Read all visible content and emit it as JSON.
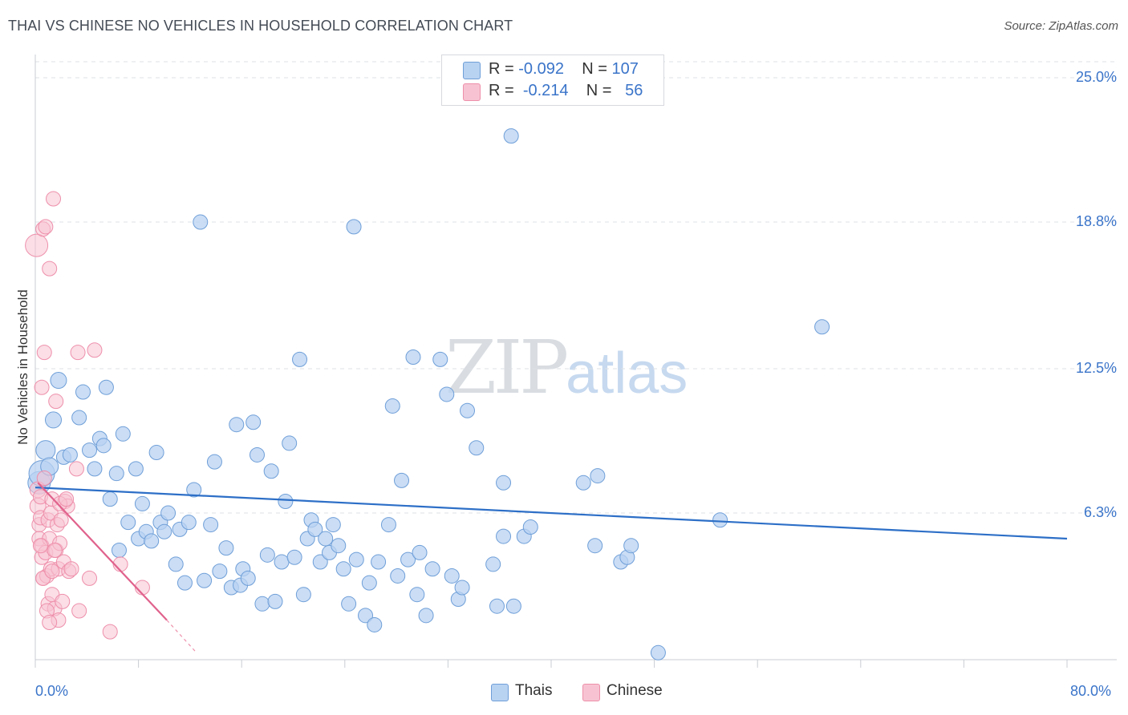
{
  "header": {
    "title": "THAI VS CHINESE NO VEHICLES IN HOUSEHOLD CORRELATION CHART",
    "source": "Source: ZipAtlas.com"
  },
  "watermark": {
    "zip": "ZIP",
    "atlas": "atlas"
  },
  "legend": {
    "thais": {
      "r_label": "R = ",
      "r_value": "-0.092",
      "n_label": "N = ",
      "n_value": "107"
    },
    "chinese": {
      "r_label": "R = ",
      "r_value": "-0.214",
      "n_label": "N = ",
      "n_value": "56"
    }
  },
  "colors": {
    "thai_fill": "#b8d2f1",
    "thai_stroke": "#6f9fd8",
    "thai_line": "#2d6fc7",
    "chinese_fill": "#f7c3d2",
    "chinese_stroke": "#ee8fab",
    "chinese_line": "#e0628c",
    "grid": "#dde1e6",
    "axis_text": "#3a74c9"
  },
  "chart_data": {
    "type": "scatter",
    "title": "THAI VS CHINESE NO VEHICLES IN HOUSEHOLD CORRELATION CHART",
    "xlabel": "",
    "ylabel": "No Vehicles in Household",
    "xlim": [
      0,
      80
    ],
    "ylim": [
      0,
      26.5
    ],
    "x_tick_labels": [
      "0.0%",
      "80.0%"
    ],
    "y_ticks": [
      6.3,
      12.5,
      18.8,
      25.0
    ],
    "y_tick_labels": [
      "6.3%",
      "12.5%",
      "18.8%",
      "25.0%"
    ],
    "legend_bottom": [
      "Thais",
      "Chinese"
    ],
    "series": [
      {
        "name": "Thais",
        "r": -0.092,
        "n": 107,
        "trend": {
          "x": [
            0,
            80
          ],
          "y": [
            7.4,
            5.2
          ]
        },
        "points": [
          [
            0.3,
            7.6,
            14
          ],
          [
            0.5,
            8.0,
            16
          ],
          [
            0.8,
            9.0,
            12
          ],
          [
            1.1,
            8.3,
            11
          ],
          [
            1.4,
            10.3,
            10
          ],
          [
            1.8,
            12.0,
            10
          ],
          [
            2.2,
            8.7,
            9
          ],
          [
            2.7,
            8.8,
            9
          ],
          [
            3.4,
            10.4,
            9
          ],
          [
            3.7,
            11.5,
            9
          ],
          [
            4.2,
            9.0,
            9
          ],
          [
            4.6,
            8.2,
            9
          ],
          [
            5.0,
            9.5,
            9
          ],
          [
            5.3,
            9.2,
            9
          ],
          [
            5.5,
            11.7,
            9
          ],
          [
            5.8,
            6.9,
            9
          ],
          [
            6.3,
            8.0,
            9
          ],
          [
            6.5,
            4.7,
            9
          ],
          [
            6.8,
            9.7,
            9
          ],
          [
            7.2,
            5.9,
            9
          ],
          [
            7.8,
            8.2,
            9
          ],
          [
            8.0,
            5.2,
            9
          ],
          [
            8.3,
            6.7,
            9
          ],
          [
            8.6,
            5.5,
            9
          ],
          [
            9.0,
            5.1,
            9
          ],
          [
            9.4,
            8.9,
            9
          ],
          [
            9.7,
            5.9,
            9
          ],
          [
            10.0,
            5.5,
            9
          ],
          [
            10.3,
            6.3,
            9
          ],
          [
            10.9,
            4.1,
            9
          ],
          [
            11.2,
            5.6,
            9
          ],
          [
            11.6,
            3.3,
            9
          ],
          [
            11.9,
            5.9,
            9
          ],
          [
            12.3,
            7.3,
            9
          ],
          [
            12.8,
            18.8,
            9
          ],
          [
            13.1,
            3.4,
            9
          ],
          [
            13.6,
            5.8,
            9
          ],
          [
            13.9,
            8.5,
            9
          ],
          [
            14.3,
            3.8,
            9
          ],
          [
            14.8,
            4.8,
            9
          ],
          [
            15.2,
            3.1,
            9
          ],
          [
            15.6,
            10.1,
            9
          ],
          [
            15.9,
            3.2,
            9
          ],
          [
            16.1,
            3.9,
            9
          ],
          [
            16.5,
            3.5,
            9
          ],
          [
            16.9,
            10.2,
            9
          ],
          [
            17.2,
            8.8,
            9
          ],
          [
            17.6,
            2.4,
            9
          ],
          [
            18.0,
            4.5,
            9
          ],
          [
            18.3,
            8.1,
            9
          ],
          [
            18.6,
            2.5,
            9
          ],
          [
            19.1,
            4.2,
            9
          ],
          [
            19.4,
            6.8,
            9
          ],
          [
            19.7,
            9.3,
            9
          ],
          [
            20.1,
            4.4,
            9
          ],
          [
            20.5,
            12.9,
            9
          ],
          [
            20.8,
            2.8,
            9
          ],
          [
            21.1,
            5.2,
            9
          ],
          [
            21.4,
            6.0,
            9
          ],
          [
            21.7,
            5.6,
            9
          ],
          [
            22.1,
            4.2,
            9
          ],
          [
            22.5,
            5.2,
            9
          ],
          [
            22.8,
            4.6,
            9
          ],
          [
            23.1,
            5.8,
            9
          ],
          [
            23.5,
            4.9,
            9
          ],
          [
            23.9,
            3.9,
            9
          ],
          [
            24.3,
            2.4,
            9
          ],
          [
            24.7,
            18.6,
            9
          ],
          [
            24.9,
            4.3,
            9
          ],
          [
            25.6,
            1.9,
            9
          ],
          [
            25.9,
            3.3,
            9
          ],
          [
            26.3,
            1.5,
            9
          ],
          [
            26.6,
            4.2,
            9
          ],
          [
            27.4,
            5.8,
            9
          ],
          [
            27.7,
            10.9,
            9
          ],
          [
            28.1,
            3.6,
            9
          ],
          [
            28.4,
            7.7,
            9
          ],
          [
            28.9,
            4.3,
            9
          ],
          [
            29.3,
            13.0,
            9
          ],
          [
            29.6,
            2.8,
            9
          ],
          [
            29.8,
            4.6,
            9
          ],
          [
            30.3,
            1.9,
            9
          ],
          [
            30.8,
            3.9,
            9
          ],
          [
            31.4,
            12.9,
            9
          ],
          [
            31.9,
            11.4,
            9
          ],
          [
            32.3,
            3.6,
            9
          ],
          [
            32.8,
            2.6,
            9
          ],
          [
            33.1,
            3.1,
            9
          ],
          [
            33.5,
            10.7,
            9
          ],
          [
            34.2,
            9.1,
            9
          ],
          [
            35.5,
            4.1,
            9
          ],
          [
            35.8,
            2.3,
            9
          ],
          [
            36.3,
            5.3,
            9
          ],
          [
            36.9,
            22.5,
            9
          ],
          [
            37.1,
            2.3,
            9
          ],
          [
            37.9,
            5.3,
            9
          ],
          [
            38.4,
            5.7,
            9
          ],
          [
            42.5,
            7.6,
            9
          ],
          [
            43.4,
            4.9,
            9
          ],
          [
            45.4,
            4.2,
            9
          ],
          [
            45.9,
            4.4,
            9
          ],
          [
            46.2,
            4.9,
            9
          ],
          [
            48.3,
            0.3,
            9
          ],
          [
            53.1,
            6.0,
            9
          ],
          [
            61.0,
            14.3,
            9
          ],
          [
            43.6,
            7.9,
            9
          ],
          [
            36.3,
            7.6,
            9
          ]
        ]
      },
      {
        "name": "Chinese",
        "r": -0.214,
        "n": 56,
        "trend": {
          "x": [
            0.2,
            10.2
          ],
          "y": [
            7.6,
            1.7
          ]
        },
        "trend_dashed": {
          "x": [
            10.2,
            12.5
          ],
          "y": [
            1.7,
            0.3
          ]
        },
        "points": [
          [
            0.1,
            17.8,
            14
          ],
          [
            0.2,
            7.3,
            10
          ],
          [
            0.2,
            6.6,
            10
          ],
          [
            0.3,
            5.8,
            9
          ],
          [
            0.3,
            5.2,
            9
          ],
          [
            0.4,
            7.0,
            9
          ],
          [
            0.4,
            6.1,
            9
          ],
          [
            0.5,
            4.9,
            9
          ],
          [
            0.5,
            4.4,
            9
          ],
          [
            0.5,
            11.7,
            9
          ],
          [
            0.6,
            3.5,
            9
          ],
          [
            0.6,
            18.5,
            9
          ],
          [
            0.7,
            7.8,
            9
          ],
          [
            0.7,
            13.2,
            9
          ],
          [
            0.8,
            18.6,
            9
          ],
          [
            0.8,
            4.6,
            9
          ],
          [
            0.9,
            3.6,
            9
          ],
          [
            1.0,
            2.4,
            9
          ],
          [
            1.0,
            6.0,
            9
          ],
          [
            1.1,
            5.2,
            9
          ],
          [
            1.1,
            16.8,
            9
          ],
          [
            1.2,
            3.9,
            9
          ],
          [
            1.2,
            6.3,
            9
          ],
          [
            1.3,
            2.8,
            9
          ],
          [
            1.3,
            6.9,
            9
          ],
          [
            1.4,
            19.8,
            9
          ],
          [
            1.5,
            2.2,
            9
          ],
          [
            1.6,
            11.1,
            9
          ],
          [
            1.6,
            4.7,
            9
          ],
          [
            1.7,
            5.8,
            9
          ],
          [
            1.8,
            1.7,
            9
          ],
          [
            1.8,
            3.9,
            9
          ],
          [
            1.9,
            5.0,
            9
          ],
          [
            2.0,
            6.0,
            9
          ],
          [
            2.1,
            2.5,
            9
          ],
          [
            2.2,
            4.2,
            9
          ],
          [
            2.3,
            6.8,
            9
          ],
          [
            2.5,
            6.6,
            9
          ],
          [
            2.6,
            3.8,
            9
          ],
          [
            3.2,
            8.2,
            9
          ],
          [
            3.3,
            13.2,
            9
          ],
          [
            3.4,
            2.1,
            9
          ],
          [
            4.2,
            3.5,
            9
          ],
          [
            4.6,
            13.3,
            9
          ],
          [
            5.8,
            1.2,
            9
          ],
          [
            6.6,
            4.1,
            9
          ],
          [
            8.3,
            3.1,
            9
          ],
          [
            0.9,
            2.1,
            9
          ],
          [
            1.5,
            4.7,
            9
          ],
          [
            2.8,
            3.9,
            9
          ],
          [
            1.1,
            1.6,
            9
          ],
          [
            0.6,
            3.5,
            9
          ],
          [
            1.9,
            6.7,
            9
          ],
          [
            0.4,
            4.9,
            9
          ],
          [
            2.4,
            6.9,
            9
          ],
          [
            1.3,
            3.8,
            9
          ]
        ]
      }
    ]
  }
}
